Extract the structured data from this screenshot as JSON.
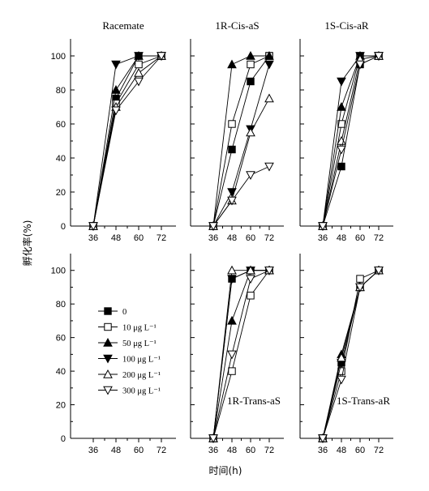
{
  "figure": {
    "ylabel": "孵化率(%)",
    "xlabel": "时间(h)"
  },
  "legend": [
    {
      "label": "0",
      "marker": "square-filled"
    },
    {
      "label": "10 μg L⁻¹",
      "marker": "square-open"
    },
    {
      "label": "50 μg L⁻¹",
      "marker": "triangle-up-filled"
    },
    {
      "label": "100 μg L⁻¹",
      "marker": "triangle-down-filled"
    },
    {
      "label": "200 μg L⁻¹",
      "marker": "triangle-up-open"
    },
    {
      "label": "300 μg L⁻¹",
      "marker": "triangle-down-open"
    }
  ],
  "chart_data": [
    {
      "type": "line",
      "title": "Racemate",
      "x": [
        36,
        48,
        60,
        72
      ],
      "ylim": [
        0,
        110
      ],
      "yticks": [
        0,
        20,
        40,
        60,
        80,
        100
      ],
      "series": [
        {
          "name": "0",
          "values": [
            0,
            75,
            100,
            100
          ]
        },
        {
          "name": "10 μg L⁻¹",
          "values": [
            0,
            72,
            95,
            100
          ]
        },
        {
          "name": "50 μg L⁻¹",
          "values": [
            0,
            80,
            100,
            100
          ]
        },
        {
          "name": "100 μg L⁻¹",
          "values": [
            0,
            95,
            100,
            100
          ]
        },
        {
          "name": "200 μg L⁻¹",
          "values": [
            0,
            70,
            90,
            100
          ]
        },
        {
          "name": "300 μg L⁻¹",
          "values": [
            0,
            68,
            85,
            100
          ]
        }
      ]
    },
    {
      "type": "line",
      "title": "1R-Cis-aS",
      "x": [
        36,
        48,
        60,
        72
      ],
      "ylim": [
        0,
        110
      ],
      "yticks": [
        0,
        20,
        40,
        60,
        80,
        100
      ],
      "series": [
        {
          "name": "0",
          "values": [
            0,
            45,
            85,
            100
          ]
        },
        {
          "name": "10 μg L⁻¹",
          "values": [
            0,
            60,
            95,
            100
          ]
        },
        {
          "name": "50 μg L⁻¹",
          "values": [
            0,
            95,
            100,
            100
          ]
        },
        {
          "name": "100 μg L⁻¹",
          "values": [
            0,
            20,
            57,
            95
          ]
        },
        {
          "name": "200 μg L⁻¹",
          "values": [
            0,
            15,
            55,
            75
          ]
        },
        {
          "name": "300 μg L⁻¹",
          "values": [
            0,
            15,
            30,
            35
          ]
        }
      ]
    },
    {
      "type": "line",
      "title": "1S-Cis-aR",
      "x": [
        36,
        48,
        60,
        72
      ],
      "ylim": [
        0,
        110
      ],
      "yticks": [
        0,
        20,
        40,
        60,
        80,
        100
      ],
      "series": [
        {
          "name": "0",
          "values": [
            0,
            35,
            95,
            100
          ]
        },
        {
          "name": "10 μg L⁻¹",
          "values": [
            0,
            60,
            100,
            100
          ]
        },
        {
          "name": "50 μg L⁻¹",
          "values": [
            0,
            70,
            100,
            100
          ]
        },
        {
          "name": "100 μg L⁻¹",
          "values": [
            0,
            85,
            100,
            100
          ]
        },
        {
          "name": "200 μg L⁻¹",
          "values": [
            0,
            50,
            98,
            100
          ]
        },
        {
          "name": "300 μg L⁻¹",
          "values": [
            0,
            45,
            95,
            100
          ]
        }
      ]
    },
    {
      "type": "line",
      "title": "",
      "x": [
        36,
        48,
        60,
        72
      ],
      "ylim": [
        0,
        110
      ],
      "yticks": [
        0,
        20,
        40,
        60,
        80,
        100
      ],
      "series": []
    },
    {
      "type": "line",
      "title": "1R-Trans-aS",
      "x": [
        36,
        48,
        60,
        72
      ],
      "ylim": [
        0,
        110
      ],
      "yticks": [
        0,
        20,
        40,
        60,
        80,
        100
      ],
      "series": [
        {
          "name": "0",
          "values": [
            0,
            95,
            100,
            100
          ]
        },
        {
          "name": "10 μg L⁻¹",
          "values": [
            0,
            40,
            85,
            100
          ]
        },
        {
          "name": "50 μg L⁻¹",
          "values": [
            0,
            70,
            100,
            100
          ]
        },
        {
          "name": "100 μg L⁻¹",
          "values": [
            0,
            95,
            100,
            100
          ]
        },
        {
          "name": "200 μg L⁻¹",
          "values": [
            0,
            100,
            100,
            100
          ]
        },
        {
          "name": "300 μg L⁻¹",
          "values": [
            0,
            50,
            95,
            100
          ]
        }
      ]
    },
    {
      "type": "line",
      "title": "1S-Trans-aR",
      "x": [
        36,
        48,
        60,
        72
      ],
      "ylim": [
        0,
        110
      ],
      "yticks": [
        0,
        20,
        40,
        60,
        80,
        100
      ],
      "series": [
        {
          "name": "0",
          "values": [
            0,
            45,
            90,
            100
          ]
        },
        {
          "name": "10 μg L⁻¹",
          "values": [
            0,
            40,
            95,
            100
          ]
        },
        {
          "name": "50 μg L⁻¹",
          "values": [
            0,
            50,
            90,
            100
          ]
        },
        {
          "name": "100 μg L⁻¹",
          "values": [
            0,
            45,
            90,
            100
          ]
        },
        {
          "name": "200 μg L⁻¹",
          "values": [
            0,
            48,
            90,
            100
          ]
        },
        {
          "name": "300 μg L⁻¹",
          "values": [
            0,
            35,
            90,
            100
          ]
        }
      ]
    }
  ]
}
